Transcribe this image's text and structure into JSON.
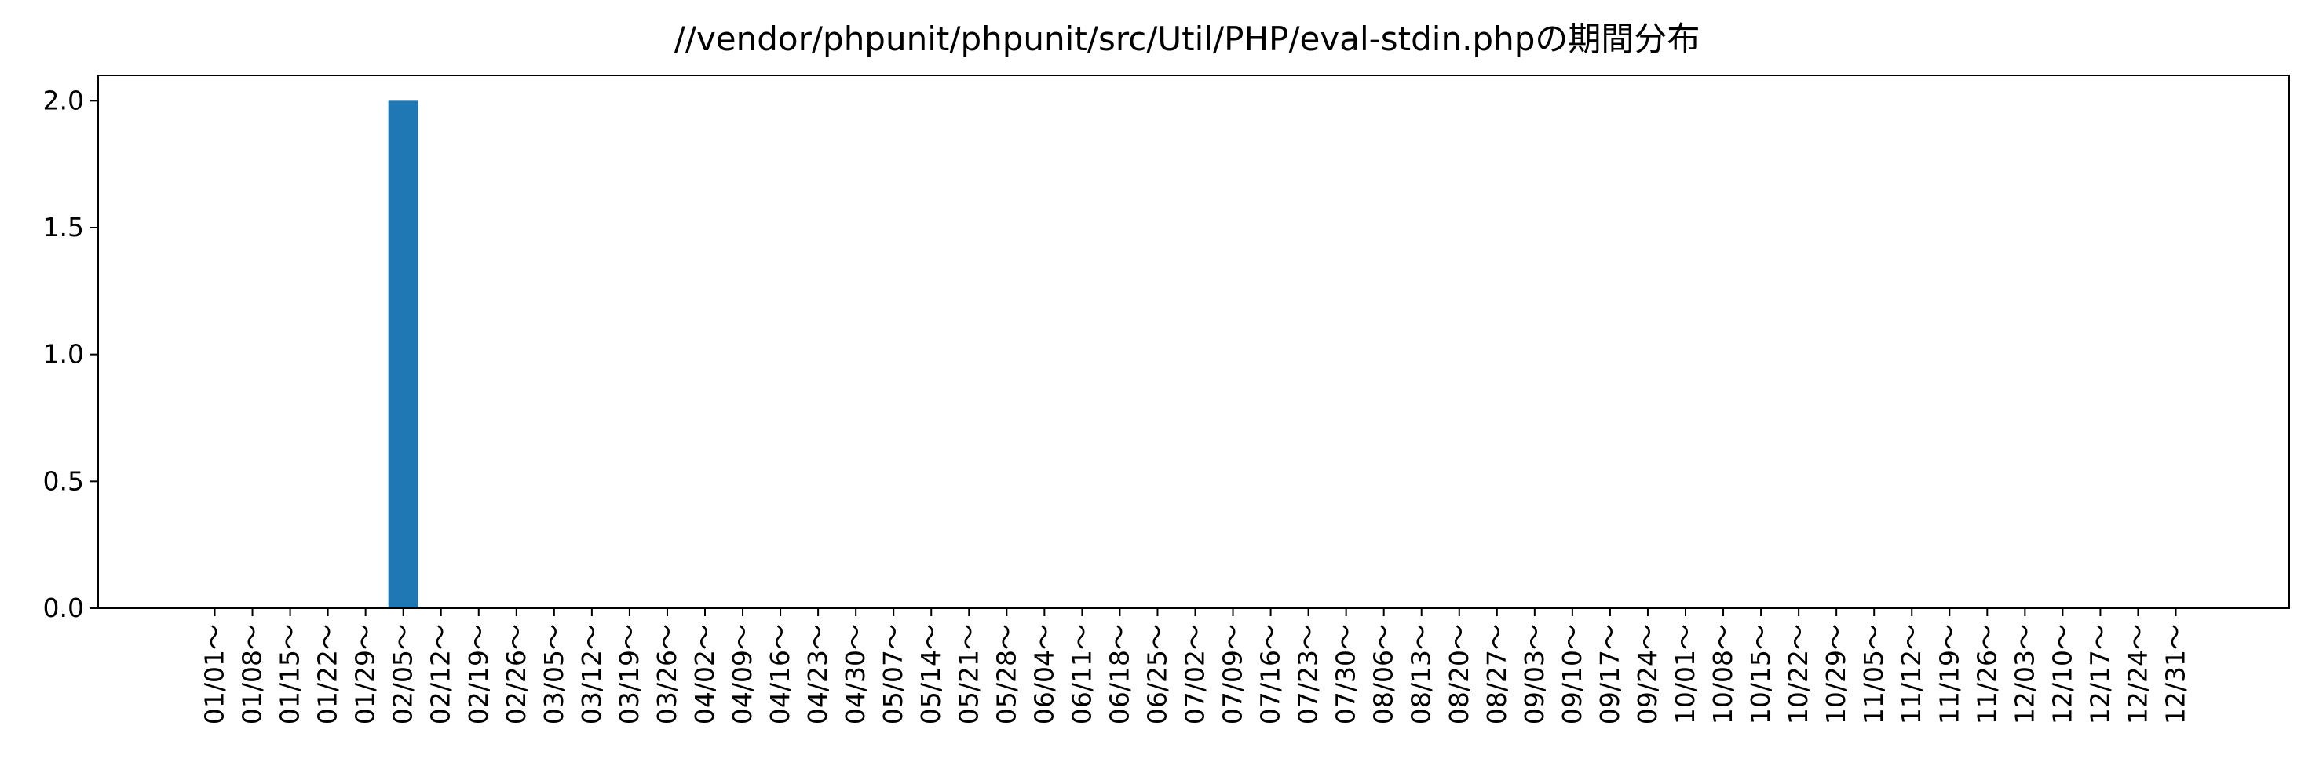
{
  "chart_data": {
    "type": "bar",
    "title": "//vendor/phpunit/phpunit/src/Util/PHP/eval-stdin.phpの期間分布",
    "xlabel": "",
    "ylabel": "",
    "ylim": [
      0,
      2.1
    ],
    "yticks": [
      "0.0",
      "0.5",
      "1.0",
      "1.5",
      "2.0"
    ],
    "ytick_values": [
      0,
      0.5,
      1.0,
      1.5,
      2.0
    ],
    "grid": false,
    "bar_color": "#1f77b4",
    "categories": [
      "01/01～",
      "01/08～",
      "01/15～",
      "01/22～",
      "01/29～",
      "02/05～",
      "02/12～",
      "02/19～",
      "02/26～",
      "03/05～",
      "03/12～",
      "03/19～",
      "03/26～",
      "04/02～",
      "04/09～",
      "04/16～",
      "04/23～",
      "04/30～",
      "05/07～",
      "05/14～",
      "05/21～",
      "05/28～",
      "06/04～",
      "06/11～",
      "06/18～",
      "06/25～",
      "07/02～",
      "07/09～",
      "07/16～",
      "07/23～",
      "07/30～",
      "08/06～",
      "08/13～",
      "08/20～",
      "08/27～",
      "09/03～",
      "09/10～",
      "09/17～",
      "09/24～",
      "10/01～",
      "10/08～",
      "10/15～",
      "10/22～",
      "10/29～",
      "11/05～",
      "11/12～",
      "11/19～",
      "11/26～",
      "12/03～",
      "12/10～",
      "12/17～",
      "12/24～",
      "12/31～"
    ],
    "values": [
      0,
      0,
      0,
      0,
      0,
      2,
      0,
      0,
      0,
      0,
      0,
      0,
      0,
      0,
      0,
      0,
      0,
      0,
      0,
      0,
      0,
      0,
      0,
      0,
      0,
      0,
      0,
      0,
      0,
      0,
      0,
      0,
      0,
      0,
      0,
      0,
      0,
      0,
      0,
      0,
      0,
      0,
      0,
      0,
      0,
      0,
      0,
      0,
      0,
      0,
      0,
      0,
      0
    ]
  }
}
